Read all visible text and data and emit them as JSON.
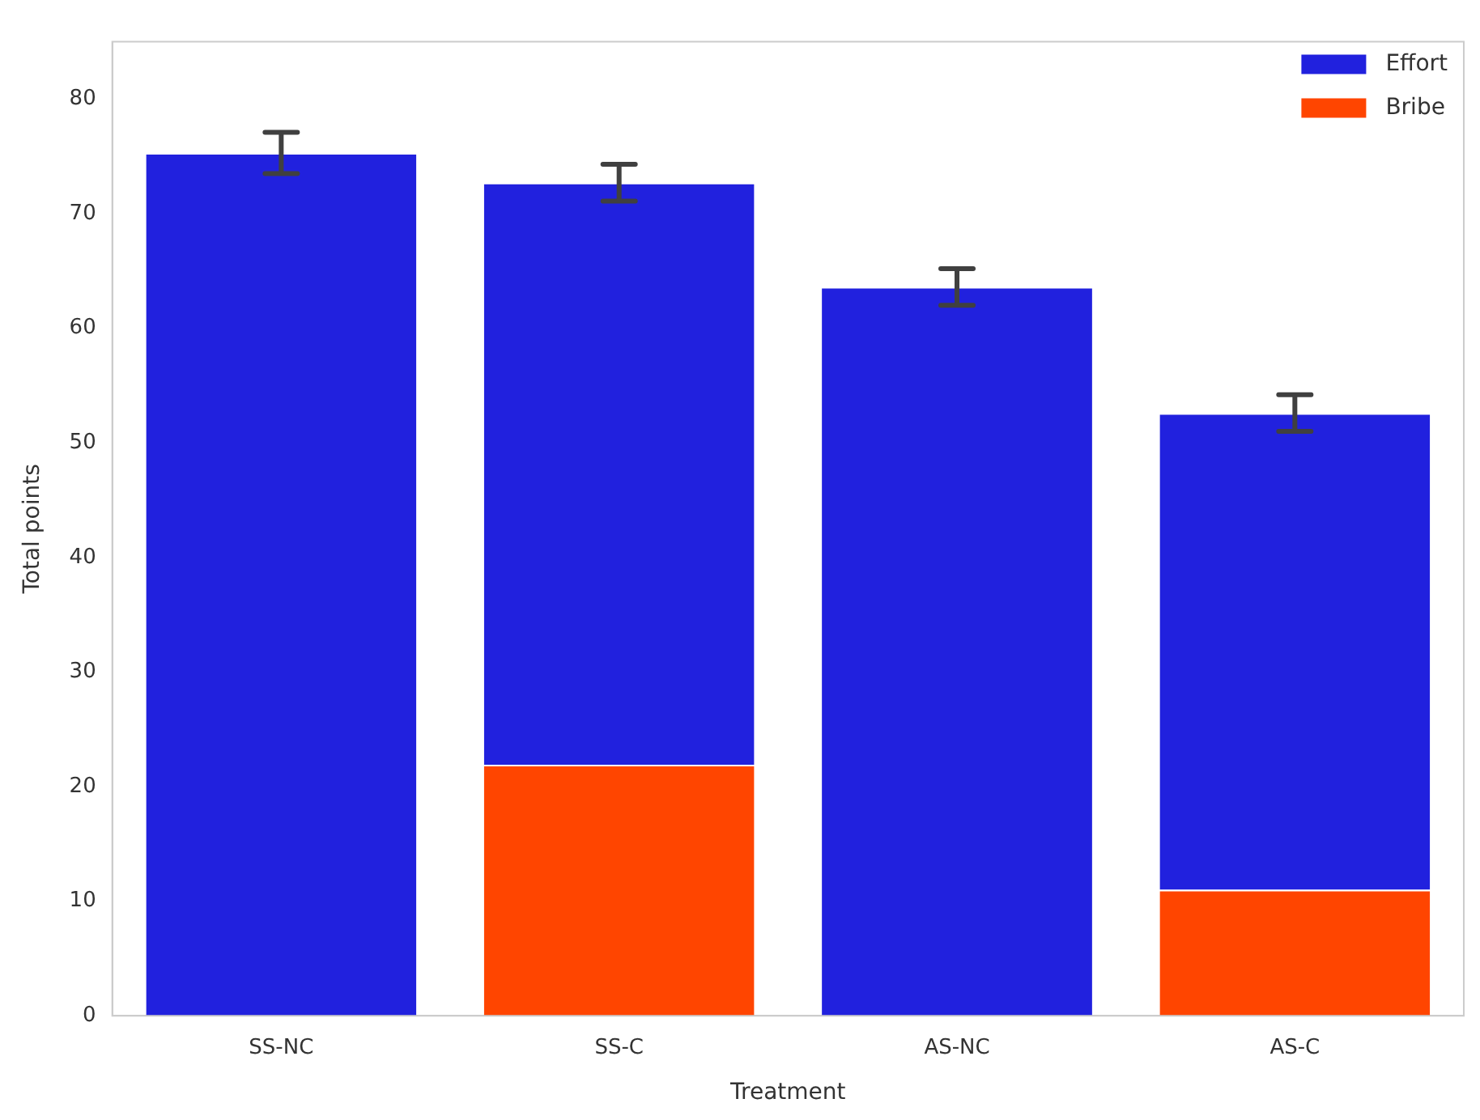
{
  "chart_data": {
    "type": "bar",
    "xlabel": "Treatment",
    "ylabel": "Total points",
    "categories": [
      "SS-NC",
      "SS-C",
      "AS-NC",
      "AS-C"
    ],
    "stacked": true,
    "series": [
      {
        "name": "Bribe",
        "color": "#ff4500",
        "values": [
          0,
          21.9,
          0,
          11.0
        ]
      },
      {
        "name": "Effort",
        "color": "#2121de",
        "values": [
          75.3,
          50.8,
          63.6,
          41.6
        ],
        "errors": [
          1.8,
          1.6,
          1.6,
          1.6
        ]
      }
    ],
    "ylim": [
      0,
      85
    ],
    "yticks": [
      0,
      10,
      20,
      30,
      40,
      50,
      60,
      70,
      80
    ],
    "grid": false,
    "legend": "top right"
  }
}
